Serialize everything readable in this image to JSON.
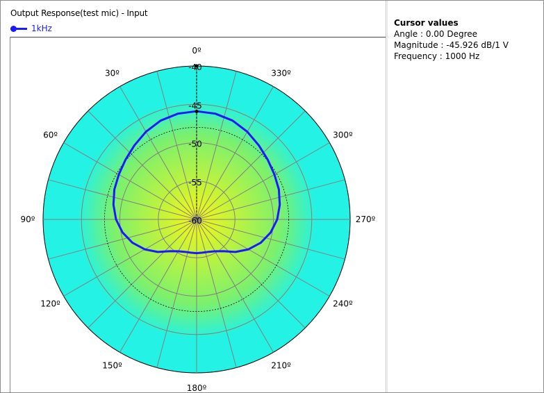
{
  "window": {
    "title": "Output Response(test mic) - Input"
  },
  "legend": {
    "label": "1kHz",
    "color": "#1a1aff"
  },
  "cursor": {
    "heading": "Cursor values",
    "angle_text": "Angle :  0.00 Degree",
    "magnitude_text": "Magnitude : -45.926 dB/1 V",
    "frequency_text": "Frequency : 1000 Hz"
  },
  "chart_data": {
    "type": "polar",
    "title": "Output Response(test mic) - Input",
    "radial_unit": "dB",
    "radial_ticks": [
      "-40",
      "-45",
      "-50",
      "-55",
      "-60"
    ],
    "radial_range": [
      -60,
      -40
    ],
    "angle_direction": "counterclockwise",
    "zero_angle": "top",
    "angle_labels": [
      {
        "angle": 0,
        "text": "0º"
      },
      {
        "angle": 30,
        "text": "30º"
      },
      {
        "angle": 60,
        "text": "60º"
      },
      {
        "angle": 90,
        "text": "90º"
      },
      {
        "angle": 120,
        "text": "120º"
      },
      {
        "angle": 150,
        "text": "150º"
      },
      {
        "angle": 180,
        "text": "180º"
      },
      {
        "angle": 210,
        "text": "210º"
      },
      {
        "angle": 240,
        "text": "240º"
      },
      {
        "angle": 270,
        "text": "270º"
      },
      {
        "angle": 300,
        "text": "300º"
      },
      {
        "angle": 330,
        "text": "330º"
      }
    ],
    "series": [
      {
        "name": "1kHz",
        "color": "#1a1aff",
        "angles": [
          0,
          10,
          20,
          30,
          40,
          50,
          60,
          70,
          80,
          90,
          100,
          110,
          120,
          130,
          140,
          150,
          160,
          170,
          180,
          190,
          200,
          210,
          220,
          230,
          240,
          250,
          260,
          270,
          280,
          290,
          300,
          310,
          320,
          330,
          340,
          350
        ],
        "values": [
          -45.9,
          -46.0,
          -46.3,
          -46.8,
          -47.4,
          -47.9,
          -48.3,
          -48.6,
          -49.0,
          -49.5,
          -50.2,
          -51.1,
          -52.2,
          -53.4,
          -54.6,
          -55.2,
          -55.5,
          -55.6,
          -55.6,
          -55.6,
          -55.5,
          -55.2,
          -54.6,
          -53.4,
          -52.2,
          -51.1,
          -50.2,
          -49.5,
          -49.0,
          -48.6,
          -48.3,
          -47.9,
          -47.4,
          -46.8,
          -46.3,
          -46.0
        ]
      }
    ],
    "reference_circle_db": -48,
    "cursor_angle": 0,
    "cursor_value_db": -45.926,
    "background_colors": {
      "outer": "#23f2e4",
      "center": "#f7f516"
    },
    "grid_color": "#808080"
  }
}
